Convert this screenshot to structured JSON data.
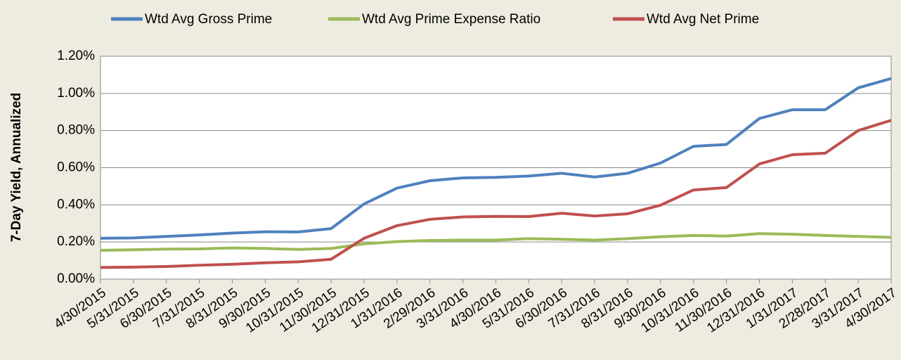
{
  "chart_data": {
    "type": "line",
    "y_label": "7-Day Yield, Annualized",
    "categories": [
      "4/30/2015",
      "5/31/2015",
      "6/30/2015",
      "7/31/2015",
      "8/31/2015",
      "9/30/2015",
      "10/31/2015",
      "11/30/2015",
      "12/31/2015",
      "1/31/2016",
      "2/29/2016",
      "3/31/2016",
      "4/30/2016",
      "5/31/2016",
      "6/30/2016",
      "7/31/2016",
      "8/31/2016",
      "9/30/2016",
      "10/31/2016",
      "11/30/2016",
      "12/31/2016",
      "1/31/2017",
      "2/28/2017",
      "3/31/2017",
      "4/30/2017"
    ],
    "series": [
      {
        "name": "Wtd Avg Gross Prime",
        "color": "#4f81bd",
        "values": [
          0.22,
          0.222,
          0.23,
          0.238,
          0.248,
          0.255,
          0.254,
          0.272,
          0.405,
          0.49,
          0.53,
          0.545,
          0.548,
          0.555,
          0.57,
          0.55,
          0.57,
          0.625,
          0.715,
          0.725,
          0.865,
          0.912,
          0.912,
          1.03,
          1.08
        ]
      },
      {
        "name": "Wtd Avg Prime Expense Ratio",
        "color": "#9bbb59",
        "values": [
          0.155,
          0.158,
          0.162,
          0.163,
          0.168,
          0.165,
          0.16,
          0.165,
          0.19,
          0.202,
          0.208,
          0.21,
          0.21,
          0.218,
          0.215,
          0.21,
          0.218,
          0.228,
          0.235,
          0.232,
          0.245,
          0.242,
          0.235,
          0.23,
          0.225
        ]
      },
      {
        "name": "Wtd Avg Net Prime",
        "color": "#c0504d",
        "values": [
          0.063,
          0.065,
          0.068,
          0.075,
          0.08,
          0.088,
          0.093,
          0.107,
          0.22,
          0.288,
          0.322,
          0.335,
          0.338,
          0.337,
          0.355,
          0.34,
          0.352,
          0.398,
          0.48,
          0.493,
          0.62,
          0.67,
          0.678,
          0.8,
          0.855
        ]
      }
    ],
    "ylim": [
      0,
      1.2
    ],
    "yticks": [
      {
        "value": 0,
        "label": "0.00%"
      },
      {
        "value": 0.2,
        "label": "0.20%"
      },
      {
        "value": 0.4,
        "label": "0.40%"
      },
      {
        "value": 0.6,
        "label": "0.60%"
      },
      {
        "value": 0.8,
        "label": "0.80%"
      },
      {
        "value": 1.0,
        "label": "1.00%"
      },
      {
        "value": 1.2,
        "label": "1.20%"
      }
    ],
    "grid": true,
    "legend": "top"
  }
}
